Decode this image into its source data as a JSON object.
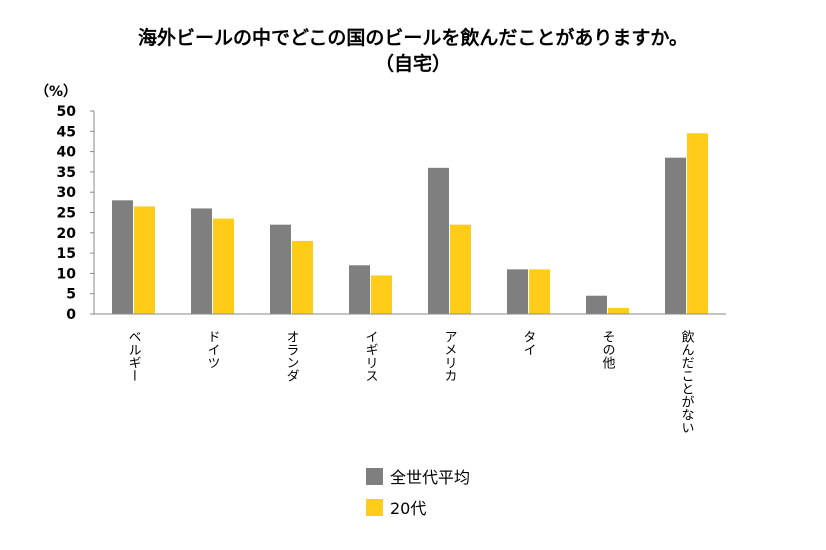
{
  "chart_data": {
    "type": "bar",
    "title": "海外ビールの中でどこの国のビールを飲んだことがありますか。",
    "subtitle": "（自宅）",
    "ylabel": "（%）",
    "xlabel": "",
    "ylim": [
      0,
      50
    ],
    "yticks": [
      0,
      5,
      10,
      15,
      20,
      25,
      30,
      35,
      40,
      45,
      50
    ],
    "categories": [
      "ベルギー",
      "ドイツ",
      "オランダ",
      "イギリス",
      "アメリカ",
      "タイ",
      "その他",
      "飲んだことがない"
    ],
    "series": [
      {
        "name": "全世代平均",
        "color": "#7f7f7f",
        "values": [
          28,
          26,
          22,
          12,
          36,
          11,
          4.5,
          38.5
        ]
      },
      {
        "name": "20代",
        "color": "#ffcc1a",
        "values": [
          26.5,
          23.5,
          18,
          9.5,
          22,
          11,
          1.5,
          44.5
        ]
      }
    ],
    "grid": false,
    "legend_position": "bottom"
  }
}
